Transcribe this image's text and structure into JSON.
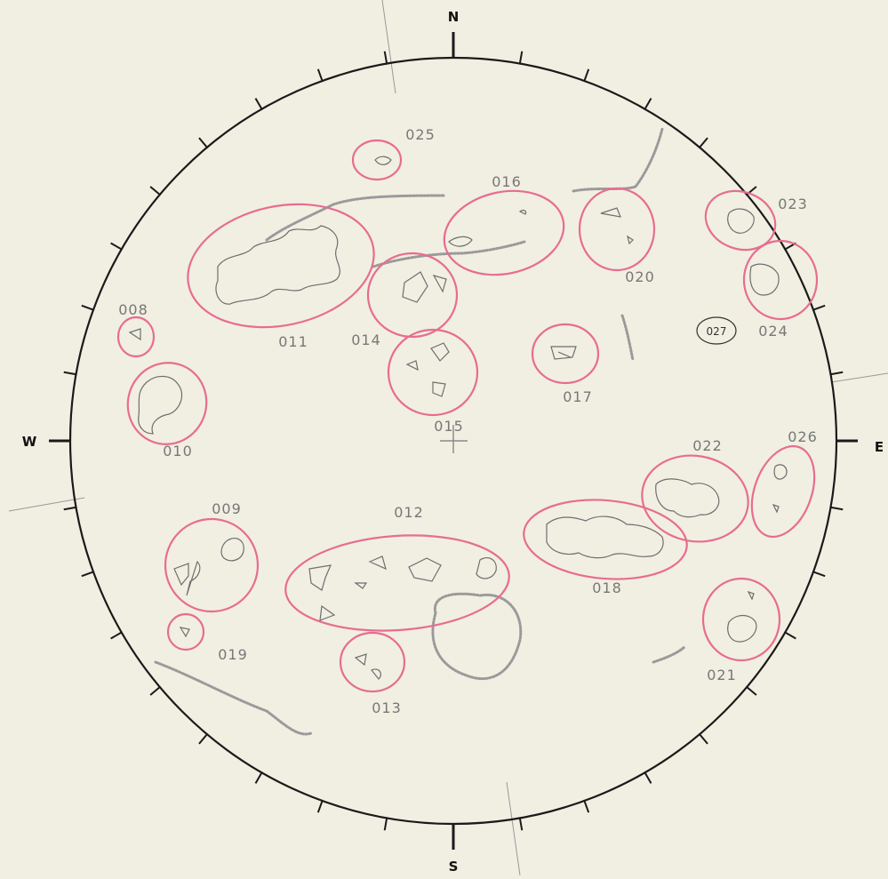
{
  "compass": {
    "north": "N",
    "south": "S",
    "east": "E",
    "west": "W"
  },
  "regions": [
    {
      "label": "008"
    },
    {
      "label": "009"
    },
    {
      "label": "010"
    },
    {
      "label": "011"
    },
    {
      "label": "012"
    },
    {
      "label": "013"
    },
    {
      "label": "014"
    },
    {
      "label": "015"
    },
    {
      "label": "016"
    },
    {
      "label": "017"
    },
    {
      "label": "018"
    },
    {
      "label": "019"
    },
    {
      "label": "020"
    },
    {
      "label": "021"
    },
    {
      "label": "022"
    },
    {
      "label": "023"
    },
    {
      "label": "024"
    },
    {
      "label": "025"
    },
    {
      "label": "026"
    },
    {
      "label": "027"
    }
  ],
  "colors": {
    "paper": "#f1efe2",
    "region_outline": "#e76d8f",
    "pencil": "#6e6e6e",
    "limb": "#1a1a1a"
  }
}
